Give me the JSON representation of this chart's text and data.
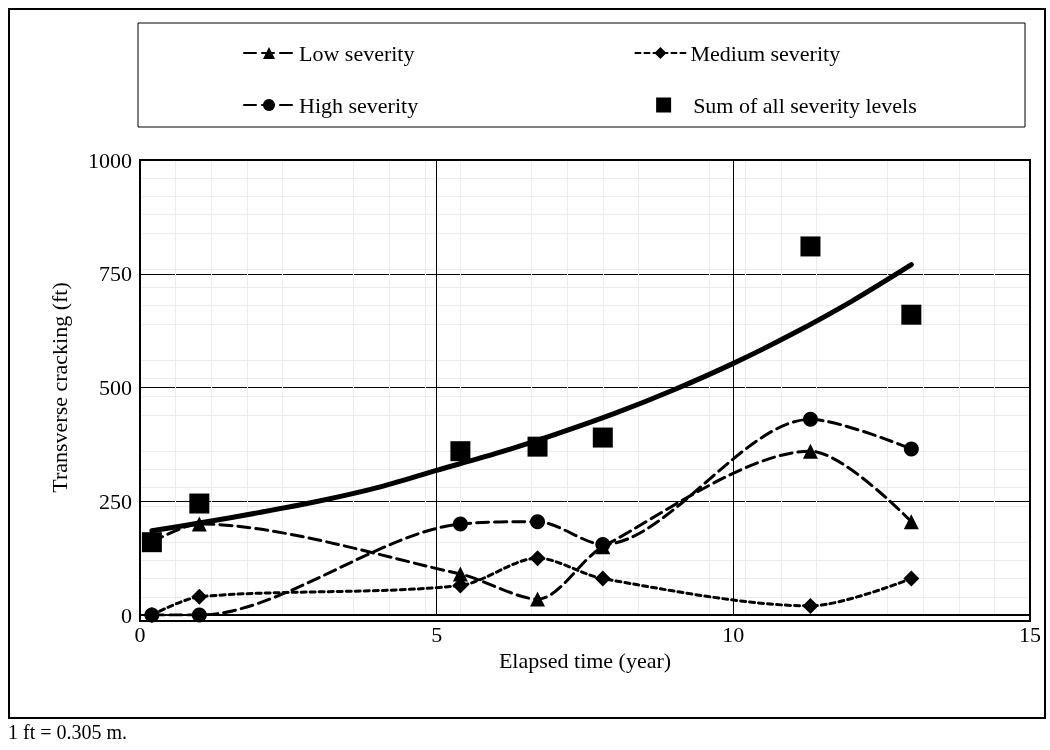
{
  "chart_data": {
    "type": "line",
    "xlabel": "Elapsed time (year)",
    "ylabel": "Transverse cracking (ft)",
    "xlim": [
      0,
      15
    ],
    "xticks": [
      0,
      5,
      10,
      15
    ],
    "ylim": [
      0,
      1000
    ],
    "yticks": [
      0,
      250,
      500,
      750,
      1000
    ],
    "grid": true,
    "legend": "top",
    "annotations": [
      "1 ft = 0.305 m."
    ],
    "series": [
      {
        "name": "Low severity",
        "color": "#000000",
        "marker": "triangle",
        "line_style": "dashed",
        "x": [
          0.2,
          1,
          5.4,
          6.7,
          7.8,
          11.3,
          13
        ],
        "values": [
          160,
          200,
          90,
          35,
          150,
          360,
          205
        ]
      },
      {
        "name": "Medium severity",
        "color": "#000000",
        "marker": "diamond",
        "line_style": "dotted",
        "x": [
          0.2,
          1,
          5.4,
          6.7,
          7.8,
          11.3,
          13
        ],
        "values": [
          0,
          40,
          65,
          125,
          80,
          20,
          80
        ]
      },
      {
        "name": "High severity",
        "color": "#000000",
        "marker": "circle",
        "line_style": "dashed",
        "x": [
          0.2,
          1,
          5.4,
          6.7,
          7.8,
          11.3,
          13
        ],
        "values": [
          0,
          0,
          200,
          205,
          155,
          430,
          365
        ]
      },
      {
        "name": "Sum of all severity levels",
        "type": "scatter",
        "color": "#000000",
        "marker": "square",
        "x": [
          0.2,
          1,
          5.4,
          6.7,
          7.8,
          11.3,
          13
        ],
        "values": [
          160,
          245,
          360,
          370,
          390,
          810,
          660
        ]
      },
      {
        "type": "line",
        "color": "#000000",
        "marker": "none",
        "line_style": "solid",
        "x": [
          0.2,
          1,
          2,
          3,
          4,
          5,
          6,
          7,
          8,
          9,
          10,
          11,
          12,
          13
        ],
        "values": [
          185,
          202,
          225,
          250,
          280,
          318,
          355,
          397,
          443,
          495,
          553,
          618,
          690,
          770
        ]
      }
    ]
  }
}
